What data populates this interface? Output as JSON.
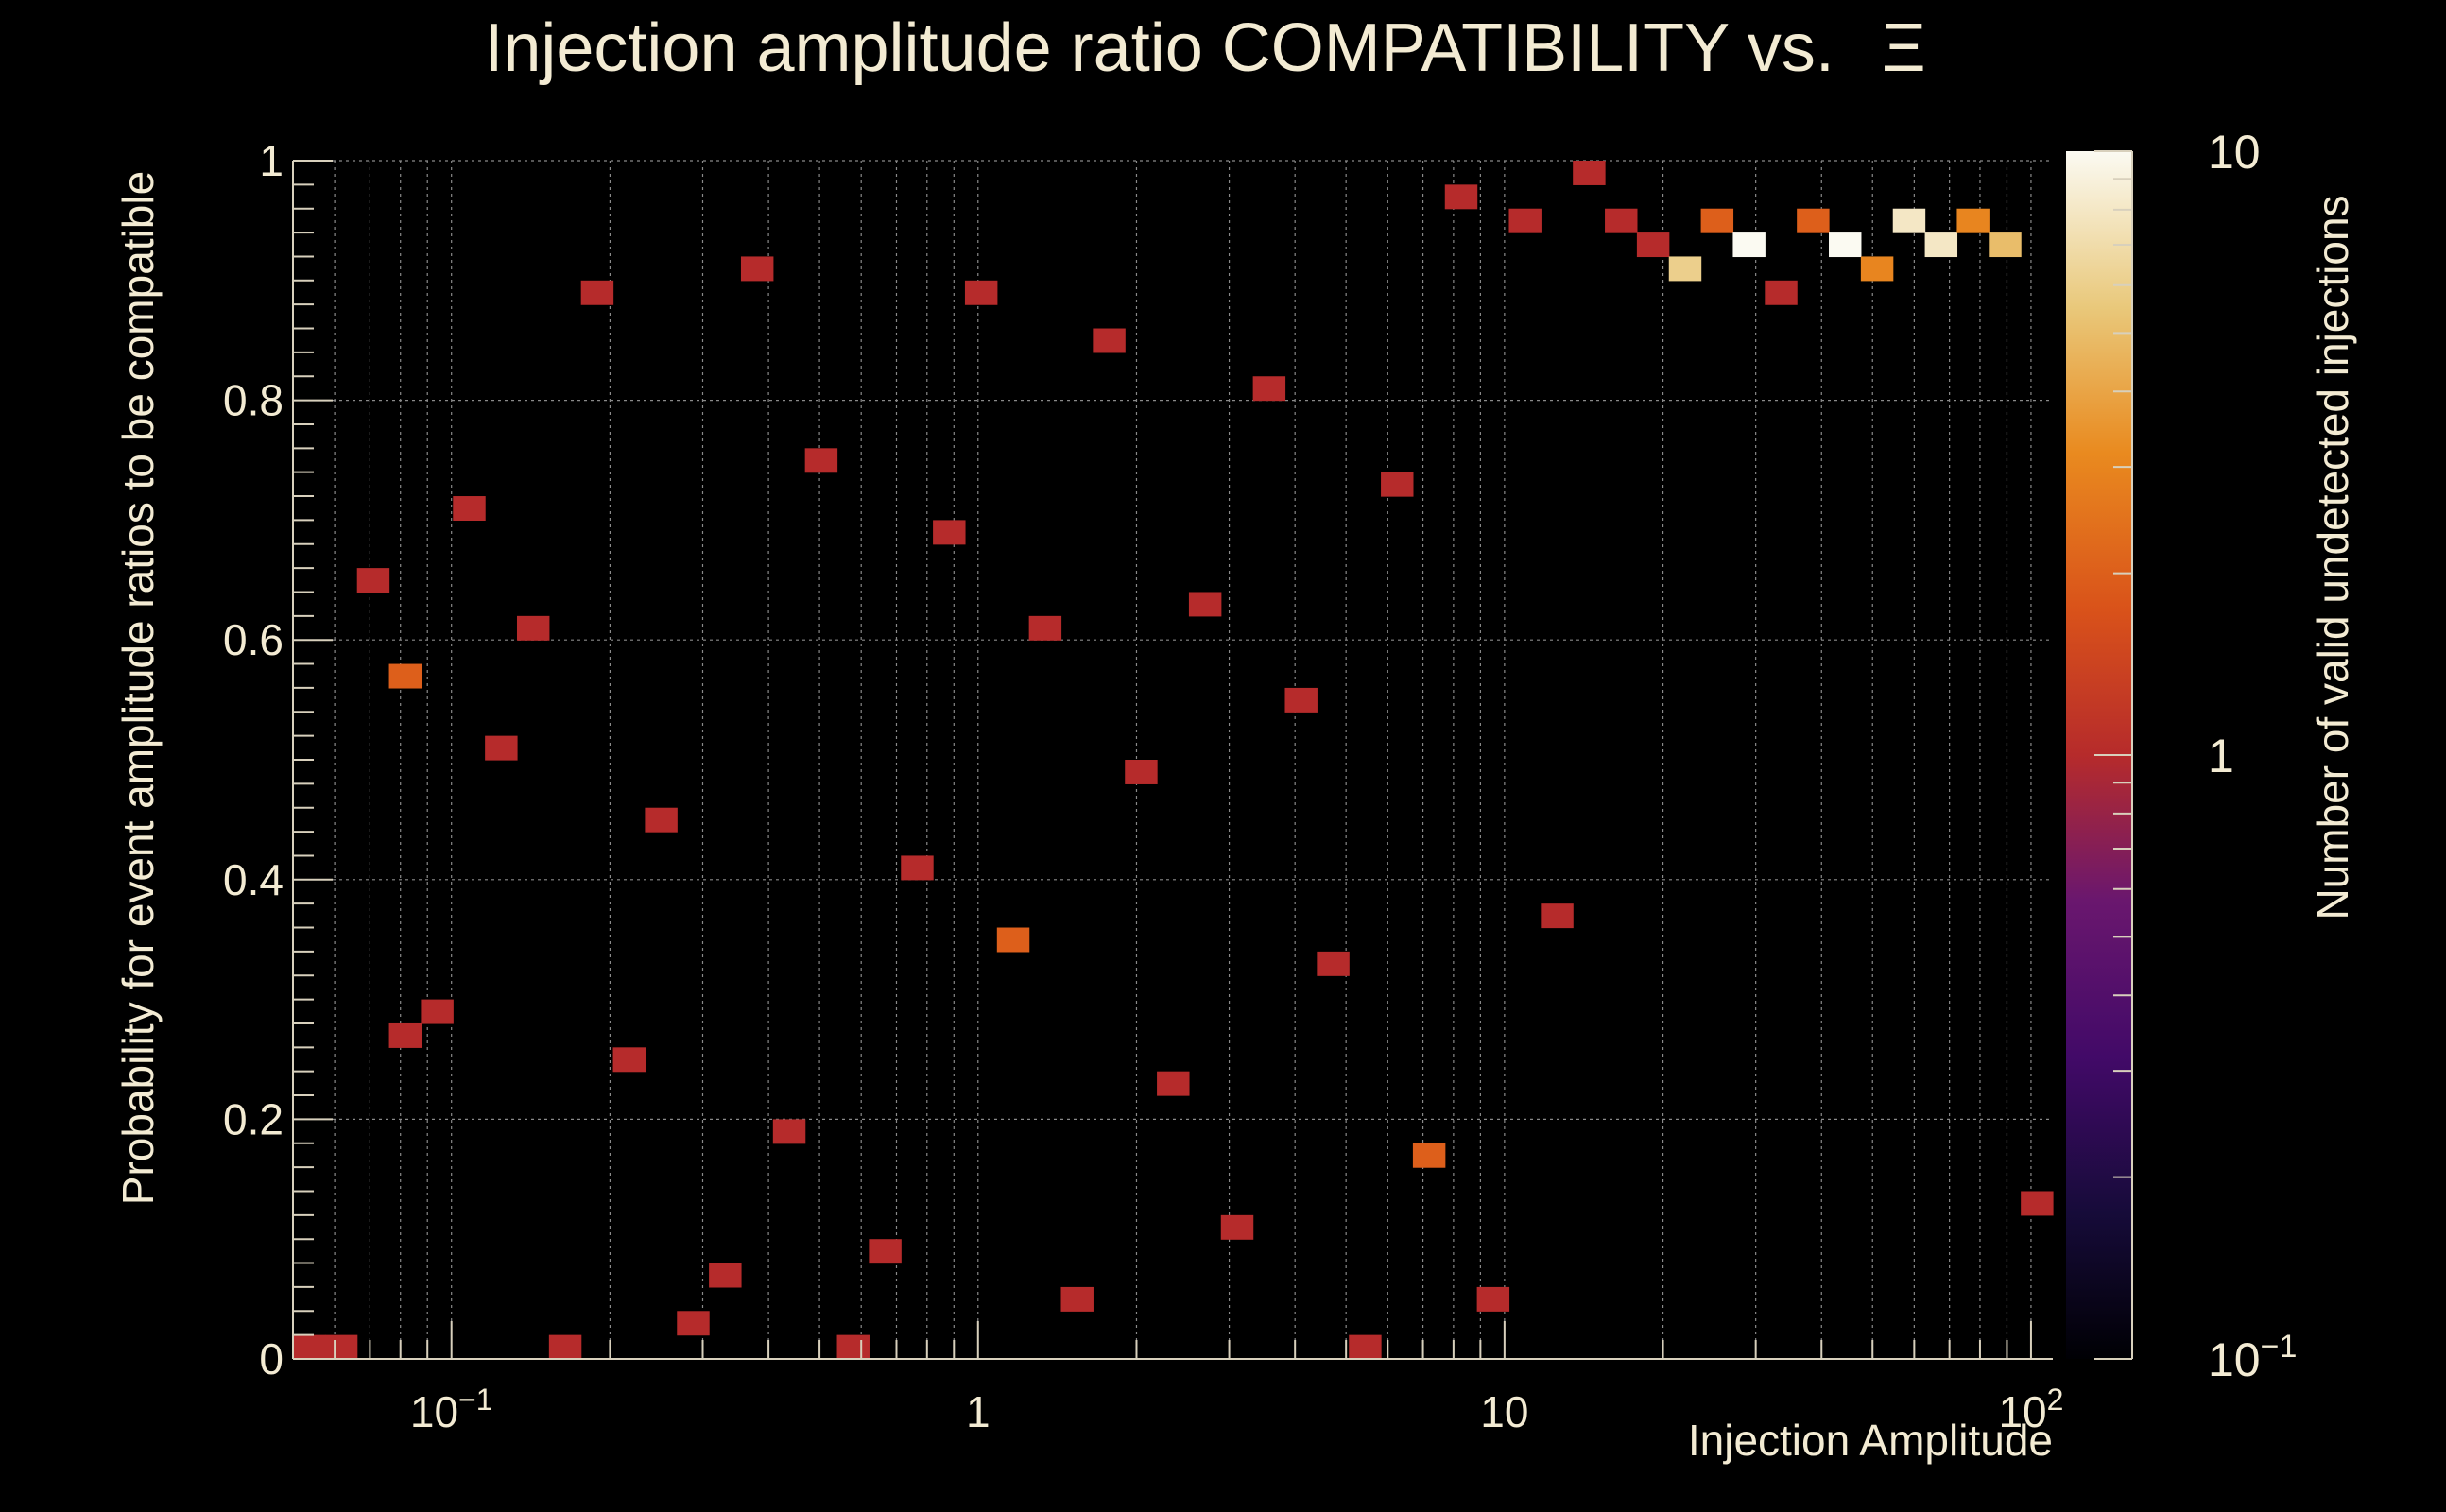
{
  "chart_data": {
    "type": "heatmap",
    "title": "Injection amplitude ratio COMPATIBILITY vs.",
    "title_symbol": "Ξ",
    "xlabel": "Injection Amplitude",
    "ylabel": "Probability for event amplitude ratios to be compatible",
    "zlabel": "Number of valid undetected injections",
    "x_scale": "log",
    "xlim": [
      0.05,
      110
    ],
    "ylim": [
      0,
      1
    ],
    "z_scale": "log",
    "zlim": [
      0.1,
      10
    ],
    "x_ticks": [
      {
        "value": 0.1,
        "base": "10",
        "exp": "−1"
      },
      {
        "value": 1,
        "base": "1",
        "exp": ""
      },
      {
        "value": 10,
        "base": "10",
        "exp": ""
      },
      {
        "value": 100,
        "base": "10",
        "exp": "2"
      }
    ],
    "y_ticks": [
      "0",
      "0.2",
      "0.4",
      "0.6",
      "0.8",
      "1"
    ],
    "z_ticks": [
      {
        "value": 10,
        "base": "10",
        "exp": ""
      },
      {
        "value": 1,
        "base": "1",
        "exp": ""
      },
      {
        "value": 0.1,
        "base": "10",
        "exp": "−1"
      }
    ],
    "grid": true,
    "bins_x": 55,
    "bins_y": 50,
    "legend": "colorbar right",
    "cells_format": "[x_bin, y_bin, count]; x_bin 0-54 over log-spaced x range, y_bin 0-49 from bottom, empty bins omitted",
    "cells": [
      [
        0,
        0,
        1
      ],
      [
        1,
        0,
        1
      ],
      [
        2,
        32,
        1
      ],
      [
        3,
        13,
        1
      ],
      [
        3,
        28,
        2
      ],
      [
        4,
        14,
        1
      ],
      [
        5,
        35,
        1
      ],
      [
        6,
        25,
        1
      ],
      [
        7,
        30,
        1
      ],
      [
        8,
        0,
        1
      ],
      [
        9,
        44,
        1
      ],
      [
        10,
        12,
        1
      ],
      [
        11,
        22,
        1
      ],
      [
        12,
        1,
        1
      ],
      [
        13,
        3,
        1
      ],
      [
        14,
        45,
        1
      ],
      [
        15,
        9,
        1
      ],
      [
        16,
        37,
        1
      ],
      [
        17,
        0,
        1
      ],
      [
        18,
        4,
        1
      ],
      [
        19,
        20,
        1
      ],
      [
        20,
        34,
        1
      ],
      [
        21,
        44,
        1
      ],
      [
        22,
        17,
        2
      ],
      [
        23,
        30,
        1
      ],
      [
        24,
        2,
        1
      ],
      [
        25,
        42,
        1
      ],
      [
        26,
        24,
        1
      ],
      [
        27,
        11,
        1
      ],
      [
        28,
        31,
        1
      ],
      [
        29,
        5,
        1
      ],
      [
        30,
        40,
        1
      ],
      [
        31,
        27,
        1
      ],
      [
        32,
        16,
        1
      ],
      [
        33,
        0,
        1
      ],
      [
        34,
        36,
        1
      ],
      [
        35,
        8,
        2
      ],
      [
        36,
        48,
        1
      ],
      [
        37,
        2,
        1
      ],
      [
        38,
        47,
        1
      ],
      [
        39,
        18,
        1
      ],
      [
        40,
        49,
        1
      ],
      [
        41,
        47,
        1
      ],
      [
        42,
        46,
        1
      ],
      [
        43,
        45,
        6
      ],
      [
        44,
        47,
        2
      ],
      [
        45,
        46,
        10
      ],
      [
        46,
        44,
        1
      ],
      [
        47,
        47,
        2
      ],
      [
        48,
        46,
        10
      ],
      [
        49,
        45,
        3
      ],
      [
        50,
        47,
        8
      ],
      [
        51,
        46,
        8
      ],
      [
        52,
        47,
        3
      ],
      [
        53,
        46,
        5
      ],
      [
        54,
        6,
        1
      ]
    ]
  }
}
